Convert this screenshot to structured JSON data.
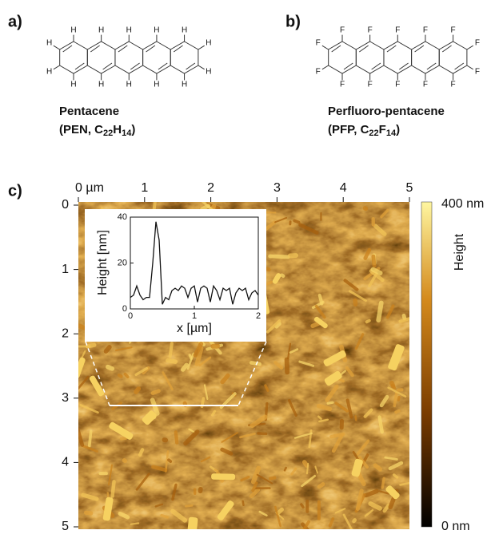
{
  "panel_a": {
    "label": "a)",
    "atom": "H",
    "name": "Pentacene",
    "formula": {
      "open": "(PEN, C",
      "n1": "22",
      "el2": "H",
      "n2": "14",
      "close": ")"
    }
  },
  "panel_b": {
    "label": "b)",
    "atom": "F",
    "name": "Perfluoro-pentacene",
    "formula": {
      "open": "(PFP, C",
      "n1": "22",
      "el2": "F",
      "n2": "14",
      "close": ")"
    }
  },
  "panel_c": {
    "label": "c)",
    "xticks": [
      {
        "value": 0,
        "label": "0 µm"
      },
      1,
      2,
      3,
      4,
      5
    ],
    "yticks": [
      0,
      1,
      2,
      3,
      4,
      5
    ],
    "lim": [
      0,
      5
    ],
    "colorbar": {
      "title": "Height",
      "max_label": "400 nm",
      "min_label": "0 nm"
    },
    "inset": {
      "type": "line",
      "x_label": "x [µm]",
      "y_label": "Height [nm]",
      "xlim": [
        0,
        2
      ],
      "ylim": [
        0,
        40
      ],
      "xticks": [
        0,
        1,
        2
      ],
      "yticks": [
        0,
        20,
        40
      ],
      "x": [
        0,
        0.05,
        0.1,
        0.15,
        0.2,
        0.25,
        0.3,
        0.35,
        0.4,
        0.45,
        0.5,
        0.55,
        0.6,
        0.65,
        0.7,
        0.75,
        0.8,
        0.85,
        0.9,
        0.95,
        1.0,
        1.05,
        1.1,
        1.15,
        1.2,
        1.25,
        1.3,
        1.35,
        1.4,
        1.45,
        1.5,
        1.55,
        1.6,
        1.65,
        1.7,
        1.75,
        1.8,
        1.85,
        1.9,
        1.95,
        2.0
      ],
      "values": [
        5,
        6,
        10,
        6,
        4,
        5,
        5,
        20,
        38,
        30,
        2,
        5,
        4,
        8,
        9,
        8,
        10,
        9,
        5,
        9,
        10,
        3,
        9,
        10,
        9,
        3,
        10,
        8,
        4,
        9,
        8,
        9,
        2,
        7,
        9,
        8,
        9,
        4,
        7,
        8,
        6
      ],
      "color": "#111111"
    }
  }
}
